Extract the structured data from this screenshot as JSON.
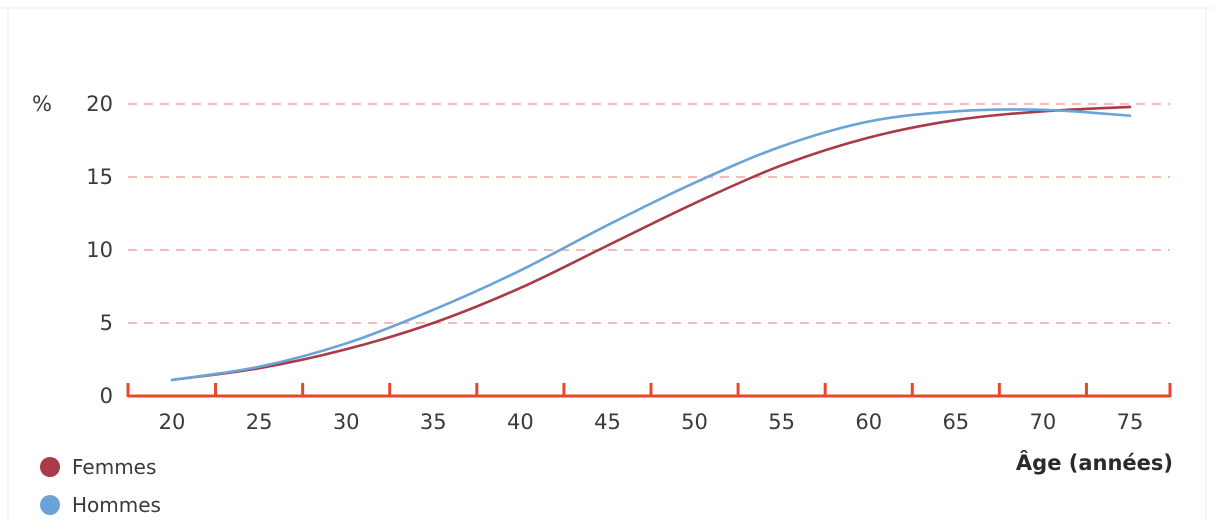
{
  "chart_data": {
    "type": "line",
    "title": "",
    "xlabel": "Âge (années)",
    "ylabel": "%",
    "x": [
      20,
      25,
      30,
      35,
      40,
      45,
      50,
      55,
      60,
      65,
      70,
      75
    ],
    "xlim": [
      20,
      75
    ],
    "ylim": [
      0,
      20
    ],
    "x_ticks": [
      20,
      25,
      30,
      35,
      40,
      45,
      50,
      55,
      60,
      65,
      70,
      75
    ],
    "y_ticks": [
      0,
      5,
      10,
      15,
      20
    ],
    "grid": "horizontal dashed",
    "legend_position": "bottom-left",
    "series": [
      {
        "name": "Femmes",
        "color": "#a83a4a",
        "values": [
          1.1,
          1.9,
          3.2,
          5.0,
          7.4,
          10.3,
          13.2,
          15.8,
          17.7,
          18.9,
          19.5,
          19.8
        ]
      },
      {
        "name": "Hommes",
        "color": "#6aa3d8",
        "values": [
          1.1,
          2.0,
          3.6,
          5.9,
          8.6,
          11.7,
          14.6,
          17.1,
          18.8,
          19.5,
          19.6,
          19.2
        ]
      }
    ]
  }
}
